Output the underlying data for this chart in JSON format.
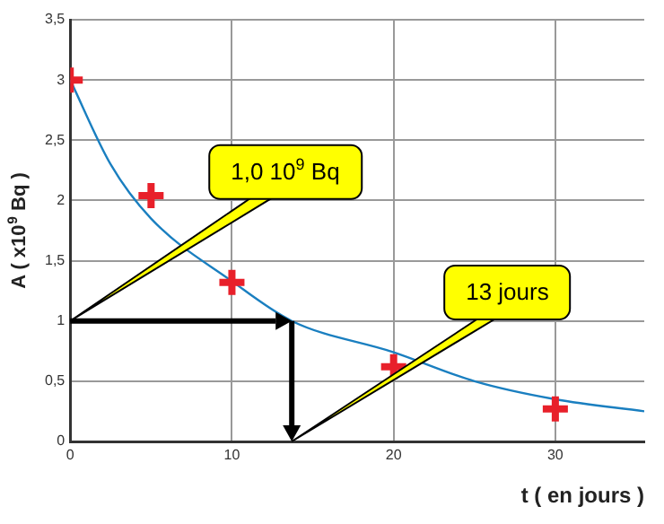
{
  "chart_data": {
    "type": "scatter",
    "xlabel": "t ( en jours )",
    "ylabel": "A ( x10$^{9}$ Bq )",
    "xlim": [
      0,
      35.5
    ],
    "xticks": [
      0,
      10,
      20,
      30
    ],
    "ylim": [
      0,
      3.5
    ],
    "yticks": [
      0,
      {
        "value": 0.5,
        "label": "0,5"
      },
      1,
      {
        "value": 1.5,
        "label": "1,5"
      },
      2,
      {
        "value": 2.5,
        "label": "2,5"
      },
      3,
      {
        "value": 3.5,
        "label": "3,5"
      }
    ],
    "grid": true,
    "marker": "cross",
    "series": [
      {
        "type": "line",
        "color": "#1a7fc0",
        "marker": "none",
        "x": [
          0,
          2.5,
          5,
          10,
          13.7,
          20,
          25,
          30,
          35.5
        ],
        "values": [
          3,
          2.3,
          1.85,
          1.33,
          1,
          0.74,
          0.5,
          0.35,
          0.25
        ]
      },
      {
        "color": "#e8202a",
        "x": [
          0,
          5,
          10,
          20,
          30
        ],
        "values": [
          3,
          2.04,
          1.32,
          0.62,
          0.27
        ]
      }
    ],
    "annotations": [
      "1,0 10$^{9}$ Bq",
      "13 jours"
    ]
  }
}
